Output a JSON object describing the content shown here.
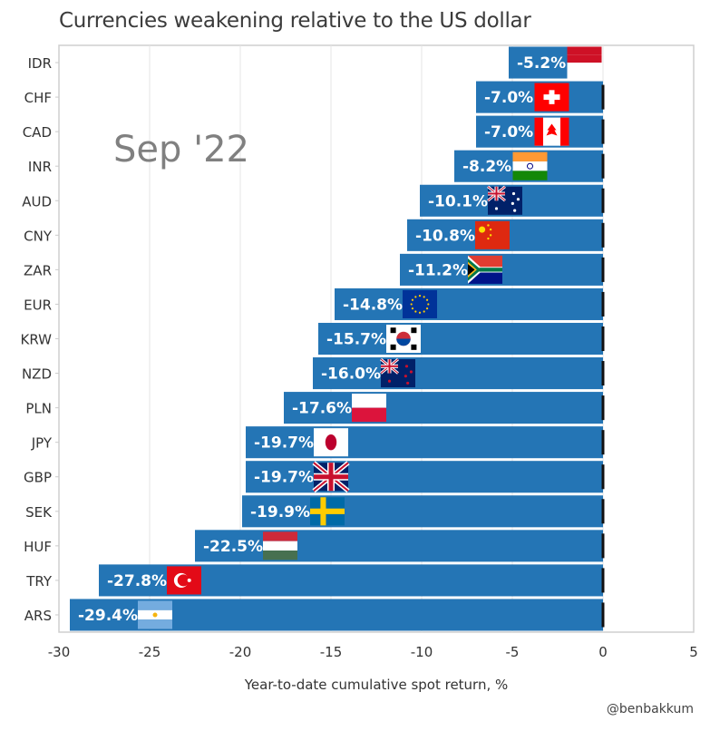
{
  "chart_data": {
    "type": "bar",
    "orientation": "horizontal",
    "title": "Currencies weakening relative to the US dollar",
    "period_label": "Sep '22",
    "xlabel": "Year-to-date cumulative spot return, %",
    "ylabel": "",
    "credit": "@benbakkum",
    "xlim": [
      -30,
      5
    ],
    "xticks": [
      -30,
      -25,
      -20,
      -15,
      -10,
      -5,
      0,
      5
    ],
    "grid": true,
    "bar_color": "#2475b5",
    "categories": [
      "IDR",
      "CHF",
      "CAD",
      "INR",
      "AUD",
      "CNY",
      "ZAR",
      "EUR",
      "KRW",
      "NZD",
      "PLN",
      "JPY",
      "GBP",
      "SEK",
      "HUF",
      "TRY",
      "ARS"
    ],
    "values": [
      -5.2,
      -7.0,
      -7.0,
      -8.2,
      -10.1,
      -10.8,
      -11.2,
      -14.8,
      -15.7,
      -16.0,
      -17.6,
      -19.7,
      -19.7,
      -19.9,
      -22.5,
      -27.8,
      -29.4
    ],
    "labels": [
      "-5.2%",
      "-7.0%",
      "-7.0%",
      "-8.2%",
      "-10.1%",
      "-10.8%",
      "-11.2%",
      "-14.8%",
      "-15.7%",
      "-16.0%",
      "-17.6%",
      "-19.7%",
      "-19.7%",
      "-19.9%",
      "-22.5%",
      "-27.8%",
      "-29.4%"
    ],
    "flags": [
      "indonesia-flag",
      "switzerland-flag",
      "canada-flag",
      "india-flag",
      "australia-flag",
      "china-flag",
      "south-africa-flag",
      "eu-flag",
      "south-korea-flag",
      "new-zealand-flag",
      "poland-flag",
      "japan-flag",
      "uk-flag",
      "sweden-flag",
      "hungary-flag",
      "turkey-flag",
      "argentina-flag"
    ]
  }
}
